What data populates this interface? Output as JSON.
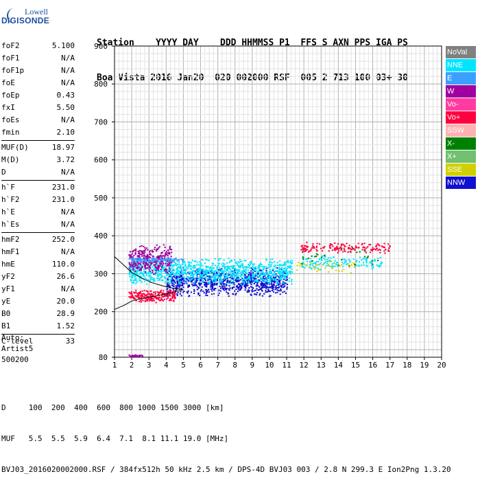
{
  "logo": {
    "line1": "Lowell",
    "line2": "DIGISONDE"
  },
  "header": {
    "labels": "Station    YYYY DAY    DDD HHMMSS P1  FFS S AXN PPS IGA PS",
    "values": "Boa Vista 2016 Jan20  020 002000 RSF  005 2 713 100 03+ 30"
  },
  "params": [
    {
      "name": "foF2",
      "value": "5.100"
    },
    {
      "name": "foF1",
      "value": "N/A"
    },
    {
      "name": "foF1p",
      "value": "N/A"
    },
    {
      "name": "foE",
      "value": "N/A"
    },
    {
      "name": "foEp",
      "value": "0.43"
    },
    {
      "name": "fxI",
      "value": "5.50"
    },
    {
      "name": "foEs",
      "value": "N/A"
    },
    {
      "name": "fmin",
      "value": "2.10"
    },
    {
      "sep": true
    },
    {
      "name": "MUF(D)",
      "value": "18.97"
    },
    {
      "name": "M(D)",
      "value": "3.72"
    },
    {
      "name": "D",
      "value": "N/A"
    },
    {
      "sep": true
    },
    {
      "name": "h`F",
      "value": "231.0"
    },
    {
      "name": "h`F2",
      "value": "231.0"
    },
    {
      "name": "h`E",
      "value": "N/A"
    },
    {
      "name": "h`Es",
      "value": "N/A"
    },
    {
      "sep": true
    },
    {
      "name": "hmF2",
      "value": "252.0"
    },
    {
      "name": "hmF1",
      "value": "N/A"
    },
    {
      "name": "hmE",
      "value": "110.0"
    },
    {
      "name": "yF2",
      "value": "26.6"
    },
    {
      "name": "yF1",
      "value": "N/A"
    },
    {
      "name": "yE",
      "value": "20.0"
    },
    {
      "name": "B0",
      "value": "28.9"
    },
    {
      "name": "B1",
      "value": "1.52"
    },
    {
      "sep": true
    },
    {
      "name": "C-level",
      "value": "33"
    }
  ],
  "autoscale": {
    "line1": "Auto:",
    "line2": "Artist5",
    "line3": "500200"
  },
  "footer": {
    "d_row": "D     100  200  400  600  800 1000 1500 3000 [km]",
    "muf_row": "MUF   5.5  5.5  5.9  6.4  7.1  8.1 11.1 19.0 [MHz]",
    "file_row": "BVJ03_2016020002000.RSF / 384fx512h 50 kHz 2.5 km / DPS-4D BVJ03 003 / 2.8 N 299.3 E Ion2Png 1.3.20"
  },
  "legend": [
    {
      "label": "NoVal",
      "color": "#808080"
    },
    {
      "label": "NNE",
      "color": "#00e5ff"
    },
    {
      "label": "E",
      "color": "#3aa0ff"
    },
    {
      "label": "W",
      "color": "#a000a0"
    },
    {
      "label": "Vo-",
      "color": "#ff3aa0"
    },
    {
      "label": "Vo+",
      "color": "#ff0040"
    },
    {
      "label": "SSW",
      "color": "#ffb0b0"
    },
    {
      "label": "X-",
      "color": "#008000"
    },
    {
      "label": "X+",
      "color": "#70c070"
    },
    {
      "label": "SSE",
      "color": "#d0d000"
    },
    {
      "label": "NNW",
      "color": "#1010d0"
    }
  ],
  "chart_data": {
    "type": "scatter",
    "xlabel": "",
    "ylabel": "",
    "xlim": [
      1,
      20
    ],
    "ylim": [
      80,
      900
    ],
    "x_ticks": [
      1,
      2,
      3,
      4,
      5,
      6,
      7,
      8,
      9,
      10,
      11,
      12,
      13,
      14,
      15,
      16,
      17,
      18,
      19,
      20
    ],
    "y_ticks": [
      80,
      200,
      300,
      400,
      500,
      600,
      700,
      800,
      900
    ],
    "grid": true,
    "clusters": [
      {
        "series": "NNW",
        "x": [
          4.0,
          11.0
        ],
        "y": [
          240,
          320
        ],
        "n": 900
      },
      {
        "series": "NNE",
        "x": [
          1.8,
          11.3
        ],
        "y": [
          270,
          345
        ],
        "n": 1100
      },
      {
        "series": "W",
        "x": [
          1.8,
          4.3
        ],
        "y": [
          300,
          380
        ],
        "n": 350
      },
      {
        "series": "E",
        "x": [
          1.8,
          5.0
        ],
        "y": [
          330,
          345
        ],
        "n": 120
      },
      {
        "series": "Vo+",
        "x": [
          1.8,
          4.5
        ],
        "y": [
          225,
          260
        ],
        "n": 220
      },
      {
        "series": "Vo+",
        "x": [
          11.8,
          17.0
        ],
        "y": [
          355,
          385
        ],
        "n": 160
      },
      {
        "series": "NNE",
        "x": [
          11.8,
          16.5
        ],
        "y": [
          310,
          350
        ],
        "n": 140
      },
      {
        "series": "SSE",
        "x": [
          11.5,
          15.0
        ],
        "y": [
          300,
          340
        ],
        "n": 40
      },
      {
        "series": "X-",
        "x": [
          11.8,
          16.5
        ],
        "y": [
          320,
          375
        ],
        "n": 30
      },
      {
        "series": "W",
        "x": [
          1.8,
          2.6
        ],
        "y": [
          82,
          88
        ],
        "n": 40
      }
    ],
    "model_curves": [
      {
        "x": [
          1.0,
          1.6,
          2.0,
          2.6,
          3.2,
          3.8,
          4.4,
          5.0
        ],
        "y": [
          206,
          218,
          228,
          235,
          240,
          245,
          251,
          258
        ]
      },
      {
        "x": [
          1.0,
          1.6,
          2.0,
          2.6,
          3.2,
          3.8,
          4.4,
          5.0
        ],
        "y": [
          345,
          320,
          303,
          288,
          276,
          268,
          262,
          258
        ]
      }
    ]
  }
}
